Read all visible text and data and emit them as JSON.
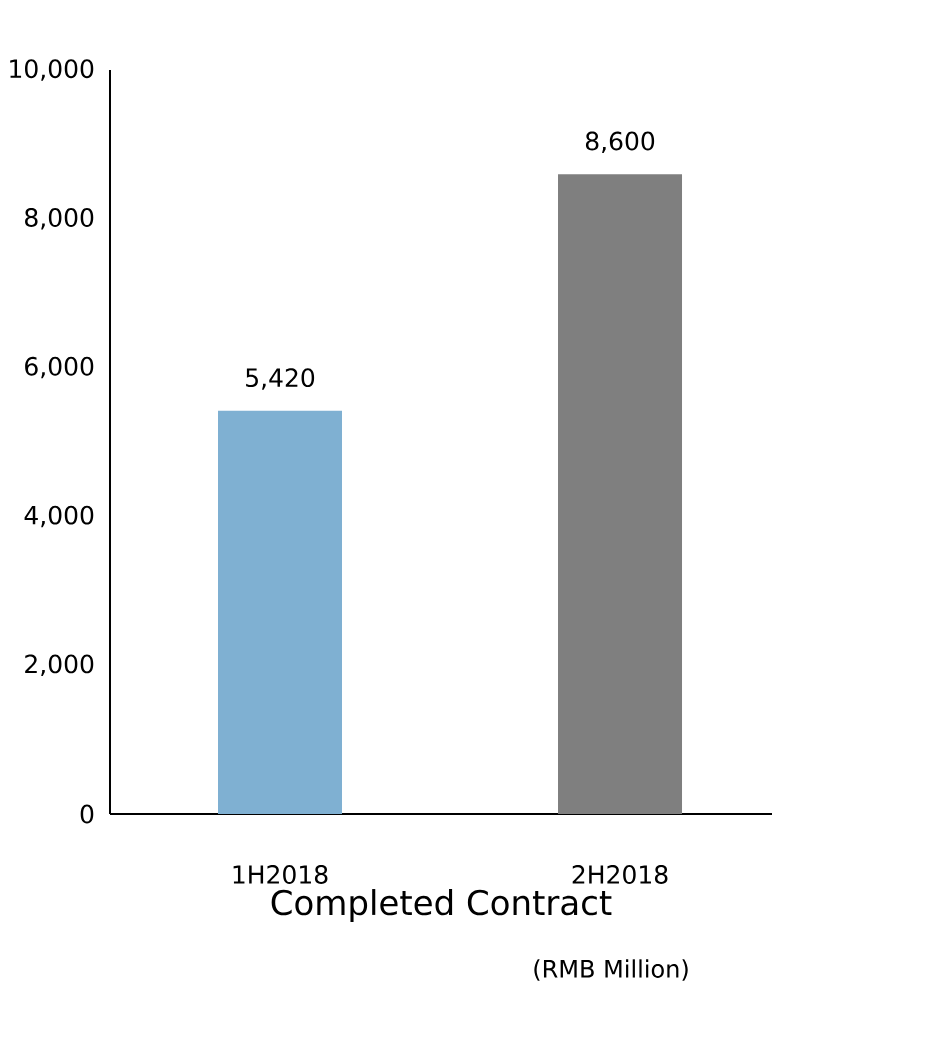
{
  "chart_data": {
    "type": "bar",
    "xlabel": "Completed Contract",
    "annotations": [
      "(RMB Million)"
    ],
    "categories": [
      "1H2018",
      "2H2018"
    ],
    "values": [
      5420,
      8600
    ],
    "colors": [
      "#7fb0d2",
      "#7f7f7f"
    ],
    "value_labels": [
      "5,420",
      "8,600"
    ],
    "ylim": [
      0,
      10000
    ],
    "yticks": [
      0,
      {
        "value": 2000,
        "label": "2,000"
      },
      {
        "value": 4000,
        "label": "4,000"
      },
      {
        "value": 6000,
        "label": "6,000"
      },
      {
        "value": 8000,
        "label": "8,000"
      },
      {
        "value": 10000,
        "label": "10,000"
      }
    ],
    "grid": false
  }
}
